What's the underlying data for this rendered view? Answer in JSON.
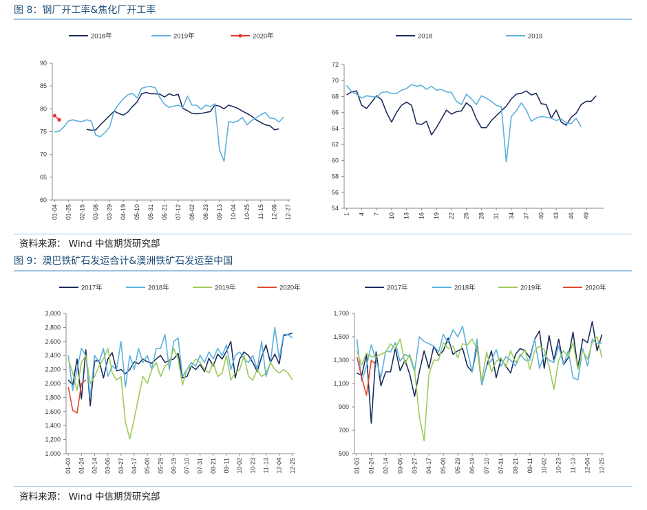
{
  "figure8": {
    "title": "图 8：钢厂开工率&焦化厂开工率",
    "source": "资料来源：    Wind    中信期货研究部"
  },
  "figure9": {
    "title": "图 9：澳巴铁矿石发运合计&澳洲铁矿石发运至中国",
    "source": "资料来源：    Wind    中信期货研究部"
  },
  "colors": {
    "c2017": "#1b2d5b",
    "c2018": "#1b2d5b",
    "c2019": "#5bb0e0",
    "c2020": "#e8352d",
    "c2018f9": "#5bb0e0",
    "c2019f9": "#9cca5a",
    "c2020f9": "#e04a2c",
    "axis": "#888888",
    "rule": "#9dc3e6"
  },
  "chart_data": [
    {
      "type": "line",
      "title": "",
      "ylim": [
        60,
        90
      ],
      "yticks": [
        "90",
        "85",
        "80",
        "75",
        "70",
        "65",
        "60"
      ],
      "x_tick_labels": [
        "01-04",
        "01-25",
        "02-15",
        "03-08",
        "03-29",
        "04-19",
        "05-10",
        "05-31",
        "06-21",
        "07-12",
        "08-02",
        "08-23",
        "09-13",
        "10-04",
        "10-25",
        "11-15",
        "12-06",
        "12-27"
      ],
      "x_count": 52,
      "legend": [
        "2018年",
        "2019年",
        "2020年"
      ],
      "series": [
        {
          "name": "2018年",
          "x_start": 7,
          "values": [
            75.5,
            75.3,
            75.4,
            76.5,
            77.5,
            78.5,
            79.5,
            79.0,
            78.6,
            79.3,
            80.5,
            81.5,
            83.3,
            83.6,
            83.3,
            83.3,
            83.2,
            82.6,
            83.3,
            82.9,
            83.2,
            80.1,
            79.6,
            79.0,
            78.9,
            79.0,
            79.2,
            79.4,
            80.8,
            80.6,
            80.0,
            80.8,
            80.5,
            80.1,
            79.5,
            79.0,
            78.4,
            77.6,
            77.0,
            76.5,
            76.3,
            75.4,
            75.6
          ]
        },
        {
          "name": "2019年",
          "x_start": 0,
          "values": [
            74.9,
            75.1,
            76.0,
            77.3,
            77.6,
            77.3,
            77.2,
            77.6,
            77.3,
            74.2,
            73.9,
            74.8,
            76.0,
            79.5,
            81.0,
            82.2,
            83.1,
            83.4,
            82.4,
            84.5,
            84.8,
            84.9,
            84.6,
            82.4,
            81.0,
            80.3,
            80.6,
            80.8,
            80.3,
            82.8,
            80.8,
            80.8,
            79.9,
            80.8,
            80.5,
            81.1,
            71.0,
            68.5,
            77.2,
            77.0,
            77.3,
            78.1,
            76.5,
            77.4,
            78.0,
            78.7,
            79.2,
            78.0,
            77.9,
            77.1,
            78.2
          ]
        },
        {
          "name": "2020年",
          "x_start": 0,
          "values": [
            78.5,
            77.6
          ]
        }
      ]
    },
    {
      "type": "line",
      "title": "",
      "ylim": [
        54,
        72
      ],
      "yticks": [
        "72",
        "70",
        "68",
        "66",
        "64",
        "62",
        "60",
        "58",
        "56",
        "54"
      ],
      "x_tick_labels": [
        "1",
        "4",
        "7",
        "10",
        "13",
        "16",
        "19",
        "22",
        "25",
        "28",
        "31",
        "34",
        "37",
        "40",
        "43",
        "46",
        "49"
      ],
      "x_count": 52,
      "legend": [
        "2018",
        "2019"
      ],
      "series": [
        {
          "name": "2018",
          "x_start": 0,
          "values": [
            68.2,
            68.6,
            68.7,
            66.9,
            66.5,
            67.3,
            68.1,
            67.6,
            66.0,
            64.8,
            66.0,
            66.9,
            67.3,
            66.9,
            64.6,
            64.5,
            64.9,
            63.2,
            64.1,
            65.2,
            66.3,
            65.8,
            66.1,
            66.2,
            67.2,
            66.7,
            65.2,
            64.1,
            64.1,
            65.0,
            65.6,
            66.2,
            66.8,
            67.7,
            68.3,
            68.4,
            68.7,
            68.2,
            68.4,
            67.1,
            67.0,
            65.3,
            66.3,
            64.8,
            64.4,
            65.4,
            65.9,
            67.0,
            67.4,
            67.4,
            68.1
          ]
        },
        {
          "name": "2019",
          "x_start": 0,
          "values": [
            69.4,
            68.6,
            68.3,
            67.8,
            68.1,
            68.0,
            67.9,
            68.5,
            68.6,
            68.4,
            68.4,
            68.8,
            69.0,
            69.5,
            69.3,
            69.4,
            68.9,
            69.3,
            68.8,
            68.9,
            68.6,
            68.5,
            67.4,
            67.0,
            68.3,
            67.7,
            67.0,
            68.1,
            67.8,
            67.4,
            66.9,
            66.7,
            59.8,
            65.5,
            66.2,
            67.2,
            66.3,
            64.9,
            65.3,
            65.5,
            65.4,
            65.3,
            65.0,
            65.2,
            64.7,
            64.6,
            65.3,
            64.2
          ]
        }
      ]
    },
    {
      "type": "line",
      "title": "",
      "ylim": [
        1000,
        3000
      ],
      "yticks": [
        "3,000",
        "2,800",
        "2,600",
        "2,400",
        "2,200",
        "2,000",
        "1,800",
        "1,600",
        "1,400",
        "1,200",
        "1,000"
      ],
      "x_tick_labels": [
        "01-03",
        "01-24",
        "02-14",
        "03-06",
        "03-27",
        "04-17",
        "05-08",
        "05-29",
        "06-19",
        "07-10",
        "07-31",
        "08-21",
        "09-11",
        "10-02",
        "10-23",
        "11-13",
        "12-04",
        "12-25"
      ],
      "x_count": 52,
      "legend": [
        "2017年",
        "2018年",
        "2019年",
        "2020年"
      ],
      "series": [
        {
          "name": "2017年",
          "x_start": 0,
          "values": [
            2050,
            1980,
            2350,
            1780,
            2480,
            1680,
            2320,
            2330,
            2080,
            2350,
            2440,
            2180,
            2200,
            2140,
            2200,
            2310,
            2280,
            2350,
            2310,
            2290,
            2350,
            2400,
            2300,
            2330,
            2350,
            2430,
            2080,
            2100,
            2250,
            2200,
            2270,
            2170,
            2360,
            2250,
            2420,
            2350,
            2460,
            2600,
            2080,
            2350,
            2450,
            2400,
            2300,
            2170,
            2380,
            2550,
            2300,
            2420,
            2280,
            2680,
            2700,
            2720
          ]
        },
        {
          "name": "2018年",
          "x_start": 0,
          "values": [
            2400,
            1900,
            2200,
            2500,
            2400,
            1800,
            2400,
            2300,
            2500,
            2100,
            2250,
            2200,
            2600,
            1950,
            2400,
            2200,
            2500,
            2300,
            2400,
            2200,
            2500,
            2500,
            2700,
            2200,
            2600,
            2650,
            2100,
            2200,
            2300,
            2250,
            2400,
            2300,
            2450,
            2350,
            2500,
            2400,
            2550,
            2200,
            2400,
            2450,
            2350,
            2300,
            2400,
            2200,
            2600,
            2100,
            2300,
            2800,
            2350,
            2700,
            2700,
            2650
          ]
        },
        {
          "name": "2019年",
          "x_start": 0,
          "values": [
            2350,
            2150,
            1900,
            2300,
            2400,
            2000,
            2100,
            2250,
            2350,
            2500,
            2150,
            2050,
            2100,
            1450,
            1210,
            1500,
            1800,
            2100,
            2000,
            2200,
            2300,
            2100,
            2250,
            2300,
            2500,
            2350,
            1980,
            2200,
            2250,
            2350,
            2300,
            2200,
            2150,
            2300,
            2100,
            2150,
            2400,
            2050,
            2150,
            2200,
            2400,
            2100,
            2050,
            2200,
            2100,
            2150,
            2300,
            2200,
            2150,
            2200,
            2150,
            2050
          ]
        },
        {
          "name": "2020年",
          "x_start": 0,
          "values": [
            1950,
            1620,
            1580,
            2000,
            2050
          ]
        }
      ]
    },
    {
      "type": "line",
      "title": "",
      "ylim": [
        500,
        1700
      ],
      "yticks": [
        "1,700",
        "1,500",
        "1,300",
        "1,100",
        "900",
        "700",
        "500"
      ],
      "x_tick_labels": [
        "01-03",
        "01-24",
        "02-14",
        "03-06",
        "03-27",
        "04-17",
        "05-08",
        "05-29",
        "06-19",
        "07-10",
        "07-31",
        "08-21",
        "09-11",
        "10-02",
        "10-23",
        "11-13",
        "12-04",
        "12-25"
      ],
      "x_count": 52,
      "legend": [
        "2017年",
        "2018年",
        "2019年",
        "2020年"
      ],
      "series": [
        {
          "name": "2017年",
          "x_start": 0,
          "values": [
            1190,
            1170,
            1350,
            760,
            1370,
            1080,
            1200,
            1200,
            1400,
            1210,
            1300,
            1180,
            990,
            1200,
            1380,
            1230,
            1420,
            1340,
            1380,
            1490,
            1350,
            1380,
            1400,
            1250,
            1200,
            1420,
            1090,
            1250,
            1380,
            1150,
            1310,
            1250,
            1190,
            1350,
            1400,
            1380,
            1320,
            1480,
            1550,
            1230,
            1510,
            1300,
            1480,
            1260,
            1320,
            1540,
            1230,
            1480,
            1450,
            1630,
            1380,
            1520
          ]
        },
        {
          "name": "2018年",
          "x_start": 0,
          "values": [
            1480,
            1120,
            1250,
            1430,
            1300,
            1150,
            1380,
            1370,
            1450,
            1290,
            1350,
            1330,
            1200,
            1500,
            1460,
            1440,
            1420,
            1370,
            1520,
            1450,
            1560,
            1500,
            1590,
            1380,
            1200,
            1480,
            1090,
            1250,
            1300,
            1390,
            1250,
            1330,
            1300,
            1250,
            1350,
            1300,
            1300,
            1480,
            1230,
            1350,
            1300,
            1280,
            1420,
            1260,
            1380,
            1150,
            1130,
            1400,
            1250,
            1480,
            1440,
            1450
          ]
        },
        {
          "name": "2019年",
          "x_start": 0,
          "values": [
            1380,
            1260,
            1360,
            1330,
            1330,
            1350,
            1370,
            1440,
            1400,
            1480,
            1270,
            1350,
            1220,
            820,
            610,
            1180,
            1300,
            1300,
            1450,
            1400,
            1420,
            1320,
            1440,
            1430,
            1480,
            1400,
            1120,
            1370,
            1200,
            1290,
            1320,
            1240,
            1380,
            1280,
            1330,
            1390,
            1220,
            1380,
            1420,
            1390,
            1250,
            1050,
            1300,
            1380,
            1330,
            1450,
            1220,
            1380,
            1310,
            1450,
            1500,
            1320
          ]
        },
        {
          "name": "2020年",
          "x_start": 0,
          "values": [
            1330,
            1150,
            1000,
            1300,
            1260
          ]
        }
      ]
    }
  ]
}
